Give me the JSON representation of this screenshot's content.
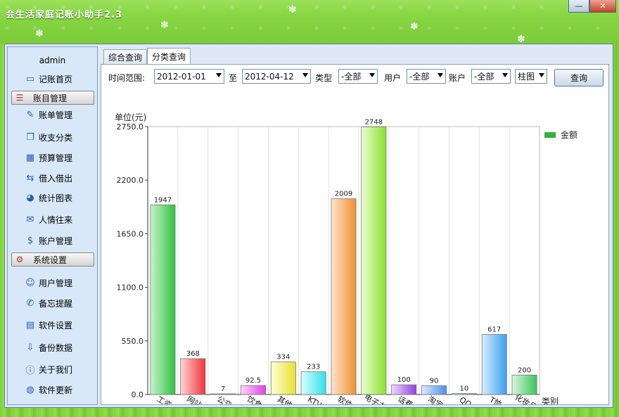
{
  "window": {
    "title": "会生活家庭记账小助手2.3",
    "min": "—",
    "close": "✕"
  },
  "sidebar": {
    "user": "admin",
    "items": [
      {
        "label": "记账首页",
        "icon": "monitor-icon",
        "glyph": "▭"
      },
      {
        "label": "账目管理",
        "icon": "ledger-icon",
        "glyph": "☰",
        "group": true
      },
      {
        "label": "账单管理",
        "icon": "pen-icon",
        "glyph": "✎"
      },
      {
        "label": "收支分类",
        "icon": "windows-icon",
        "glyph": "❐"
      },
      {
        "label": "预算管理",
        "icon": "calculator-icon",
        "glyph": "▦"
      },
      {
        "label": "借入借出",
        "icon": "exchange-icon",
        "glyph": "⇆"
      },
      {
        "label": "统计图表",
        "icon": "pie-chart-icon",
        "glyph": "◕"
      },
      {
        "label": "人情往来",
        "icon": "gift-icon",
        "glyph": "✉"
      },
      {
        "label": "账户管理",
        "icon": "dollar-icon",
        "glyph": "$"
      },
      {
        "label": "系统设置",
        "icon": "gears-icon",
        "glyph": "⚙",
        "group": true
      },
      {
        "label": "用户管理",
        "icon": "user-icon",
        "glyph": "☺"
      },
      {
        "label": "备忘提醒",
        "icon": "memo-icon",
        "glyph": "✆"
      },
      {
        "label": "软件设置",
        "icon": "settings-window-icon",
        "glyph": "▤"
      },
      {
        "label": "备份数据",
        "icon": "backup-icon",
        "glyph": "⇩"
      },
      {
        "label": "关于我们",
        "icon": "about-icon",
        "glyph": "ⓘ"
      },
      {
        "label": "软件更新",
        "icon": "globe-icon",
        "glyph": "◍"
      }
    ]
  },
  "tabs": [
    {
      "label": "综合查询"
    },
    {
      "label": "分类查询"
    }
  ],
  "filters": {
    "time_label": "时间范围:",
    "start_date": "2012-01-01",
    "to_label": "至",
    "end_date": "2012-04-12",
    "type_label": "类型",
    "type_value": "-全部",
    "user_label": "用户",
    "user_value": "-全部",
    "account_label": "账户",
    "account_value": "-全部",
    "chart_value": "柱图",
    "query_button": "查询"
  },
  "chart_data": {
    "type": "bar",
    "ylabel": "单位(元)",
    "xlabel": "类别",
    "legend": [
      {
        "name": "金额",
        "color": "#2db33a"
      }
    ],
    "legend_position": "top-right",
    "ylim": [
      0,
      2750
    ],
    "yticks": [
      "0.0",
      "550.0",
      "1100.0",
      "1650.0",
      "2200.0",
      "2750.0"
    ],
    "categories": [
      "工资",
      "网站",
      "公交",
      "饮食",
      "其他",
      "KTV",
      "软件",
      "电子书",
      "话费",
      "淘宝",
      "QQ",
      "T恤",
      "化妆品"
    ],
    "values": [
      1947,
      368,
      7,
      92.5,
      334,
      233,
      2009,
      2748,
      100,
      90,
      10,
      617,
      200
    ],
    "value_labels": [
      "1947",
      "368",
      "7",
      "92.5",
      "334",
      "233",
      "2009",
      "2748",
      "100",
      "90",
      "10",
      "617",
      "200"
    ],
    "colors": [
      [
        "#c9f2cf",
        "#2fc33f"
      ],
      [
        "#ffd4d4",
        "#f0343a"
      ],
      [
        "#e8e8ff",
        "#5050f0"
      ],
      [
        "#ffd6ff",
        "#e040e8"
      ],
      [
        "#ffffd8",
        "#e8e030"
      ],
      [
        "#d8ffff",
        "#30e0e8"
      ],
      [
        "#ffe4cc",
        "#f09030"
      ],
      [
        "#eaffcf",
        "#8ce030"
      ],
      [
        "#efd8ff",
        "#9040e0"
      ],
      [
        "#dcecff",
        "#4a90e8"
      ],
      [
        "#e8f8e8",
        "#40b040"
      ],
      [
        "#d8eeff",
        "#3aa0f0"
      ],
      [
        "#d8f8dc",
        "#3bc45a"
      ]
    ],
    "grid": true
  }
}
